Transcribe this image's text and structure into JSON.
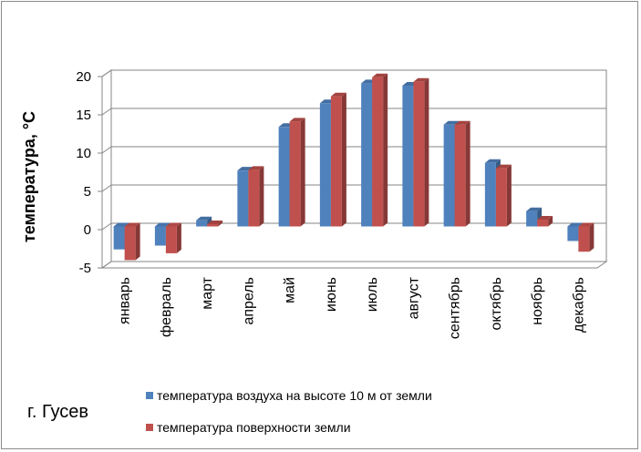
{
  "chart_data": {
    "type": "bar",
    "ylabel": "температура, °C",
    "ylim": [
      -5,
      20
    ],
    "yticks": [
      -5,
      0,
      5,
      10,
      15,
      20
    ],
    "grid": true,
    "legend_placement": "bottom",
    "categories": [
      "январь",
      "февраль",
      "март",
      "апрель",
      "май",
      "июнь",
      "июль",
      "август",
      "сентябрь",
      "октябрь",
      "ноябрь",
      "декабрь"
    ],
    "series": [
      {
        "name": "температура воздуха на высоте 10 м от земли",
        "color": "#4f81bd",
        "values": [
          -3.0,
          -2.5,
          0.8,
          7.3,
          13.0,
          16.1,
          18.7,
          18.4,
          13.3,
          8.3,
          2.0,
          -1.9
        ]
      },
      {
        "name": "температура поверхности земли",
        "color": "#c0504d",
        "values": [
          -4.4,
          -3.5,
          0.3,
          7.4,
          13.7,
          17.0,
          19.5,
          18.9,
          13.3,
          7.6,
          0.9,
          -3.3
        ]
      }
    ]
  },
  "annotation": {
    "city": "г. Гусев"
  }
}
